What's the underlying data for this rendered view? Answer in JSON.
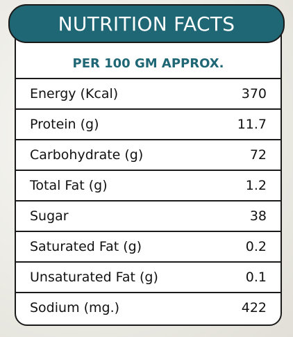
{
  "title": "NUTRITION FACTS",
  "subtitle": "PER 100 GM APPROX.",
  "rows": [
    {
      "label": "Energy (Kcal)",
      "value": "370"
    },
    {
      "label": "Protein (g)",
      "value": "11.7"
    },
    {
      "label": "Carbohydrate (g)",
      "value": "72"
    },
    {
      "label": "Total Fat (g)",
      "value": "1.2"
    },
    {
      "label": "Sugar",
      "value": "38"
    },
    {
      "label": "Saturated Fat (g)",
      "value": "0.2"
    },
    {
      "label": "Unsaturated Fat (g)",
      "value": "0.1"
    },
    {
      "label": "Sodium (mg.)",
      "value": "422"
    }
  ],
  "colors": {
    "accent": "#1f6774",
    "border": "#1a1a1a"
  }
}
